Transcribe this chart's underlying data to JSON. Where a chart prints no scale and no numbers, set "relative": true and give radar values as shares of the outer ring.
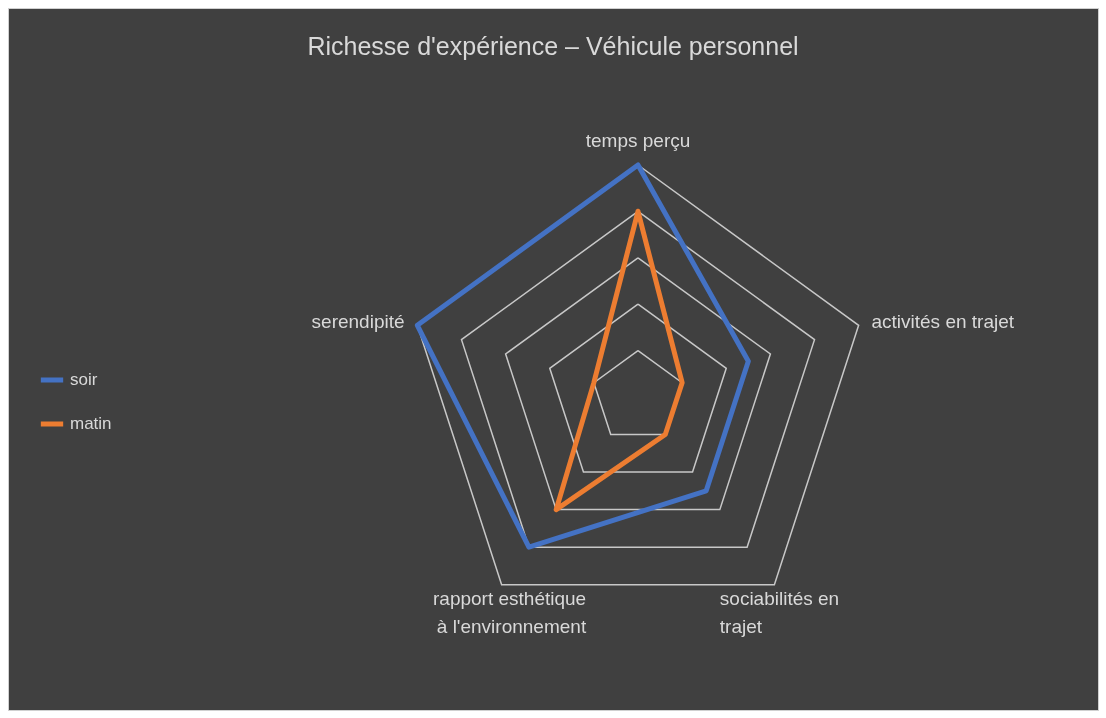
{
  "chart_data": {
    "type": "radar",
    "title": "Richesse d'expérience – Véhicule personnel",
    "relative": true,
    "grid": true,
    "legend": "left",
    "categories": [
      "temps perçu",
      "activités en trajet",
      "sociabilités en trajet",
      "rapport esthétique à l'environnement",
      "serendipité"
    ],
    "series": [
      {
        "name": "soir",
        "color": "#4472c4",
        "values": [
          1.0,
          0.5,
          0.5,
          0.8,
          1.0
        ]
      },
      {
        "name": "matin",
        "color": "#ed7d31",
        "values": [
          0.8,
          0.2,
          0.2,
          0.6,
          0.2
        ]
      }
    ]
  }
}
